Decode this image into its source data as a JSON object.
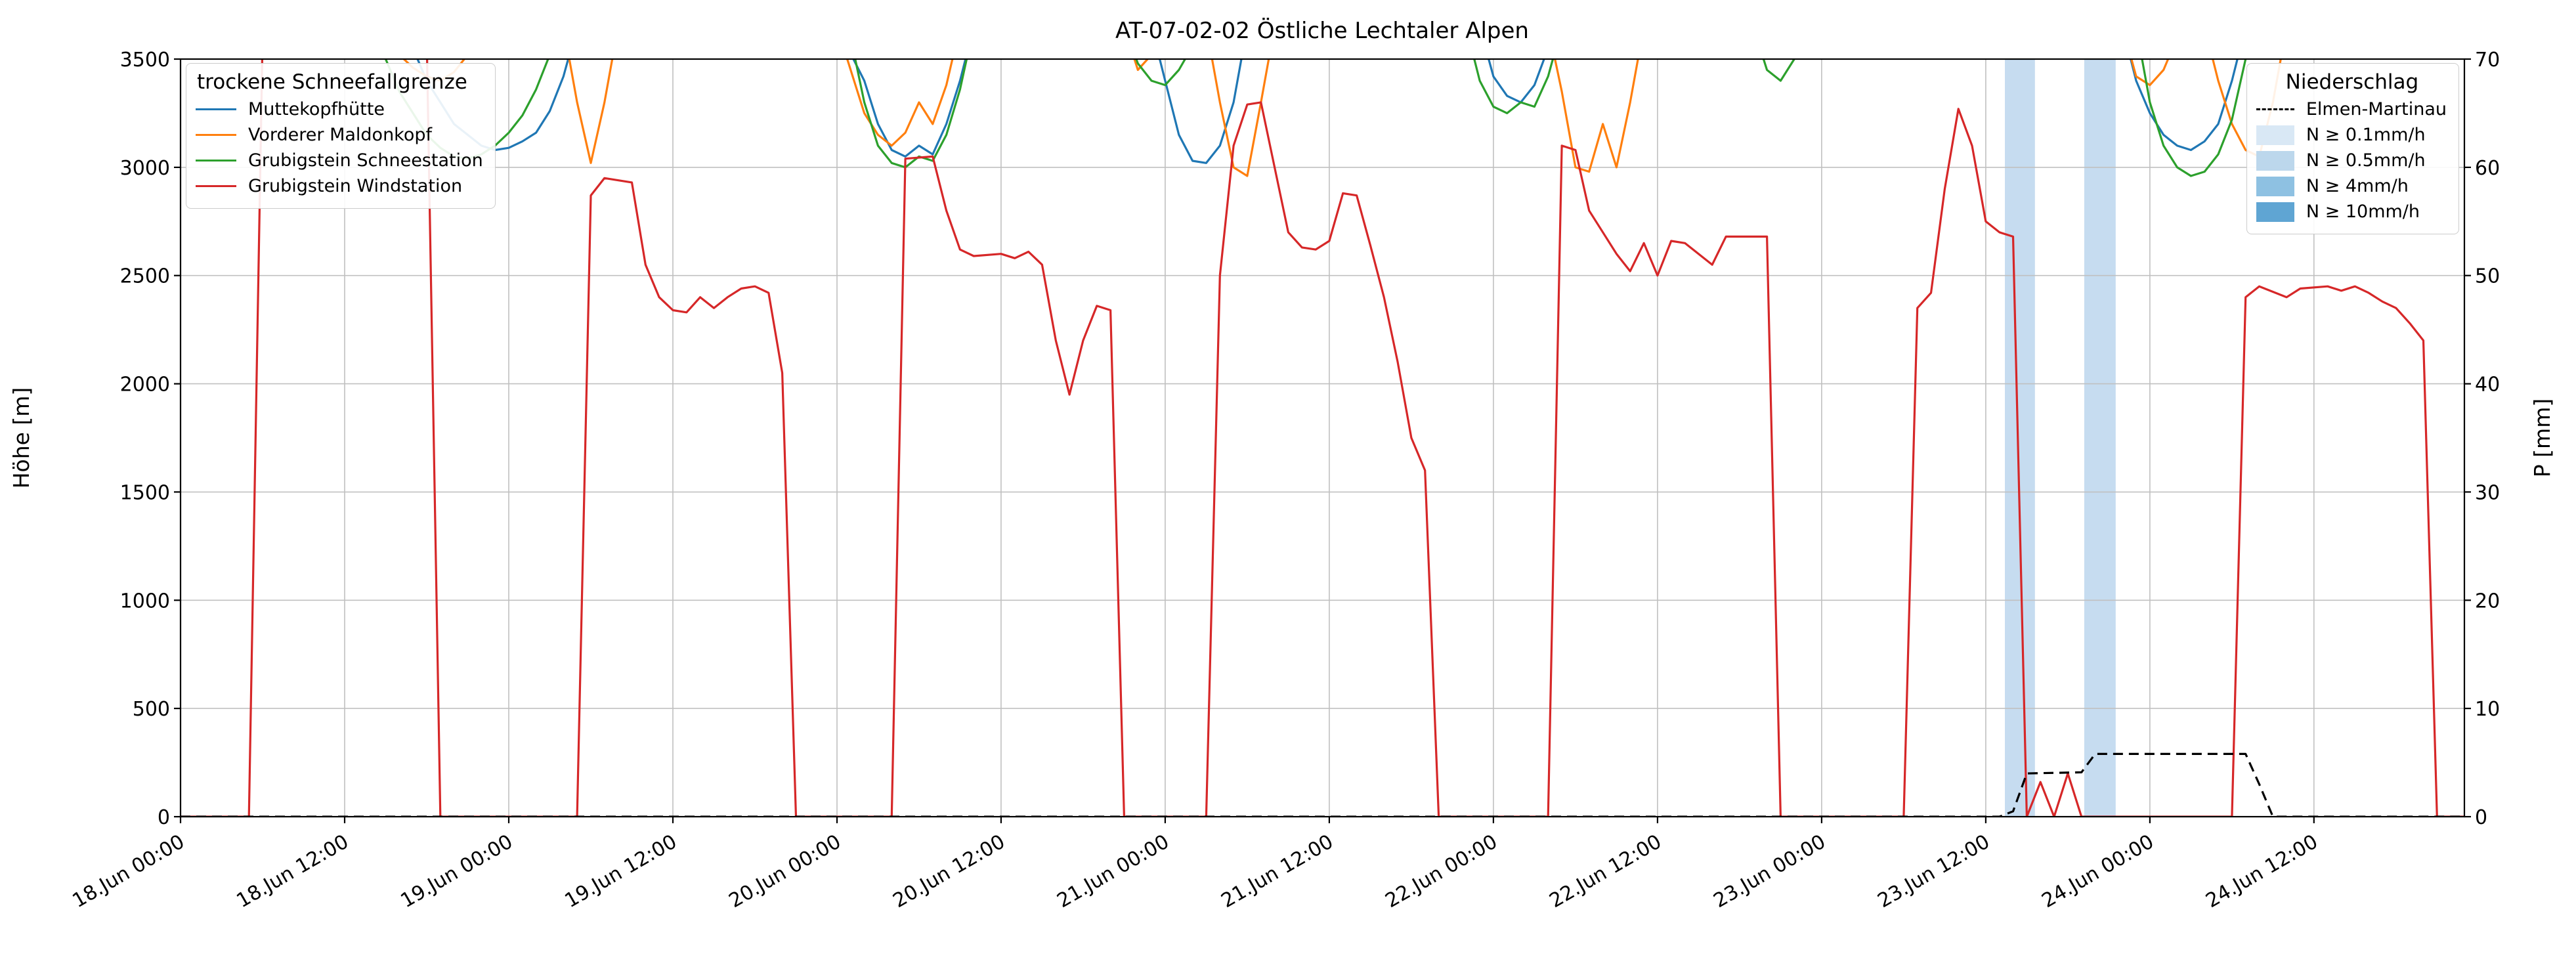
{
  "title": "AT-07-02-02 Östliche Lechtaler Alpen",
  "legend_snowline": {
    "title": "trockene Schneefallgrenze",
    "entries": [
      {
        "label": "Muttekopfhütte",
        "color": "#1f77b4"
      },
      {
        "label": "Vorderer Maldonkopf",
        "color": "#ff7f0e"
      },
      {
        "label": "Grubigstein Schneestation",
        "color": "#2ca02c"
      },
      {
        "label": "Grubigstein Windstation",
        "color": "#d62728"
      }
    ]
  },
  "legend_precip": {
    "title": "Niederschlag",
    "entries": [
      {
        "label": "Elmen-Martinau",
        "type": "dashed-line",
        "color": "#000000"
      },
      {
        "label": "N ≥ 0.1mm/h",
        "type": "patch",
        "color": "#d9e8f5"
      },
      {
        "label": "N ≥ 0.5mm/h",
        "type": "patch",
        "color": "#bcd7ec"
      },
      {
        "label": "N ≥ 4mm/h",
        "type": "patch",
        "color": "#8ec1e2"
      },
      {
        "label": "N ≥ 10mm/h",
        "type": "patch",
        "color": "#5fa5d3"
      }
    ]
  },
  "chart_data": {
    "type": "line",
    "title": "AT-07-02-02 Östliche Lechtaler Alpen",
    "grid": true,
    "x_axis": {
      "unit": "time",
      "range_hours": [
        0,
        167
      ],
      "tick_hours": [
        0,
        12,
        24,
        36,
        48,
        60,
        72,
        84,
        96,
        108,
        120,
        132,
        144,
        156
      ],
      "tick_labels": [
        "18.Jun 00:00",
        "18.Jun 12:00",
        "19.Jun 00:00",
        "19.Jun 12:00",
        "20.Jun 00:00",
        "20.Jun 12:00",
        "21.Jun 00:00",
        "21.Jun 12:00",
        "22.Jun 00:00",
        "22.Jun 12:00",
        "23.Jun 00:00",
        "23.Jun 12:00",
        "24.Jun 00:00",
        "24.Jun 12:00"
      ]
    },
    "y_left": {
      "label": "Höhe [m]",
      "min": 0,
      "max": 3500,
      "ticks": [
        0,
        500,
        1000,
        1500,
        2000,
        2500,
        3000,
        3500
      ]
    },
    "y_right": {
      "label": "P [mm]",
      "min": 0,
      "max": 70,
      "ticks": [
        0,
        10,
        20,
        30,
        40,
        50,
        60,
        70
      ]
    },
    "precip_bands": [
      {
        "start_hour": 133.4,
        "end_hour": 135.6,
        "intensity": "N ≥ 0.5mm/h",
        "color": "#c6dcf0"
      },
      {
        "start_hour": 139.2,
        "end_hour": 141.5,
        "intensity": "N ≥ 0.5mm/h",
        "color": "#c6dcf0"
      }
    ],
    "series": [
      {
        "name": "Muttekopfhütte",
        "color": "#1f77b4",
        "axis": "left",
        "style": "solid",
        "points": [
          [
            0,
            3650
          ],
          [
            16,
            3650
          ],
          [
            17,
            3550
          ],
          [
            18,
            3400
          ],
          [
            19,
            3300
          ],
          [
            20,
            3200
          ],
          [
            21,
            3150
          ],
          [
            22,
            3100
          ],
          [
            23,
            3080
          ],
          [
            24,
            3090
          ],
          [
            25,
            3120
          ],
          [
            26,
            3160
          ],
          [
            27,
            3260
          ],
          [
            28,
            3420
          ],
          [
            29,
            3650
          ],
          [
            48,
            3650
          ],
          [
            50,
            3400
          ],
          [
            51,
            3200
          ],
          [
            52,
            3080
          ],
          [
            53,
            3050
          ],
          [
            54,
            3100
          ],
          [
            55,
            3060
          ],
          [
            56,
            3200
          ],
          [
            57,
            3400
          ],
          [
            58,
            3650
          ],
          [
            71,
            3650
          ],
          [
            72,
            3400
          ],
          [
            73,
            3150
          ],
          [
            74,
            3030
          ],
          [
            75,
            3020
          ],
          [
            76,
            3100
          ],
          [
            77,
            3300
          ],
          [
            78,
            3650
          ],
          [
            95,
            3650
          ],
          [
            96,
            3420
          ],
          [
            97,
            3330
          ],
          [
            98,
            3300
          ],
          [
            99,
            3380
          ],
          [
            100,
            3550
          ],
          [
            101,
            3650
          ],
          [
            142,
            3650
          ],
          [
            143,
            3400
          ],
          [
            144,
            3250
          ],
          [
            145,
            3150
          ],
          [
            146,
            3100
          ],
          [
            147,
            3080
          ],
          [
            148,
            3120
          ],
          [
            149,
            3200
          ],
          [
            150,
            3400
          ],
          [
            151,
            3650
          ],
          [
            167,
            3650
          ]
        ]
      },
      {
        "name": "Vorderer Maldonkopf",
        "color": "#ff7f0e",
        "axis": "left",
        "style": "solid",
        "points": [
          [
            0,
            3650
          ],
          [
            15,
            3650
          ],
          [
            16,
            3520
          ],
          [
            17,
            3460
          ],
          [
            18,
            3420
          ],
          [
            19,
            3400
          ],
          [
            20,
            3440
          ],
          [
            21,
            3520
          ],
          [
            22,
            3650
          ],
          [
            28,
            3650
          ],
          [
            29,
            3300
          ],
          [
            30,
            3020
          ],
          [
            31,
            3300
          ],
          [
            32,
            3650
          ],
          [
            48,
            3650
          ],
          [
            49,
            3450
          ],
          [
            50,
            3250
          ],
          [
            51,
            3150
          ],
          [
            52,
            3100
          ],
          [
            53,
            3160
          ],
          [
            54,
            3300
          ],
          [
            55,
            3200
          ],
          [
            56,
            3380
          ],
          [
            57,
            3650
          ],
          [
            69,
            3650
          ],
          [
            70,
            3450
          ],
          [
            71,
            3520
          ],
          [
            72,
            3650
          ],
          [
            75,
            3650
          ],
          [
            76,
            3300
          ],
          [
            77,
            3000
          ],
          [
            78,
            2960
          ],
          [
            79,
            3300
          ],
          [
            80,
            3650
          ],
          [
            100,
            3650
          ],
          [
            101,
            3350
          ],
          [
            102,
            3000
          ],
          [
            103,
            2980
          ],
          [
            104,
            3200
          ],
          [
            105,
            3000
          ],
          [
            106,
            3300
          ],
          [
            107,
            3650
          ],
          [
            142,
            3650
          ],
          [
            143,
            3420
          ],
          [
            144,
            3380
          ],
          [
            145,
            3450
          ],
          [
            146,
            3600
          ],
          [
            148,
            3650
          ],
          [
            149,
            3400
          ],
          [
            150,
            3200
          ],
          [
            151,
            3080
          ],
          [
            152,
            3050
          ],
          [
            153,
            3300
          ],
          [
            154,
            3650
          ],
          [
            167,
            3650
          ]
        ]
      },
      {
        "name": "Grubigstein Schneestation",
        "color": "#2ca02c",
        "axis": "left",
        "style": "solid",
        "points": [
          [
            0,
            3650
          ],
          [
            14,
            3650
          ],
          [
            15,
            3500
          ],
          [
            16,
            3350
          ],
          [
            17,
            3250
          ],
          [
            18,
            3150
          ],
          [
            19,
            3090
          ],
          [
            20,
            3050
          ],
          [
            21,
            3040
          ],
          [
            22,
            3060
          ],
          [
            23,
            3100
          ],
          [
            24,
            3160
          ],
          [
            25,
            3240
          ],
          [
            26,
            3360
          ],
          [
            27,
            3520
          ],
          [
            28,
            3650
          ],
          [
            48,
            3650
          ],
          [
            49,
            3600
          ],
          [
            50,
            3300
          ],
          [
            51,
            3100
          ],
          [
            52,
            3020
          ],
          [
            53,
            3000
          ],
          [
            54,
            3050
          ],
          [
            55,
            3030
          ],
          [
            56,
            3150
          ],
          [
            57,
            3360
          ],
          [
            58,
            3650
          ],
          [
            69,
            3650
          ],
          [
            70,
            3480
          ],
          [
            71,
            3400
          ],
          [
            72,
            3380
          ],
          [
            73,
            3450
          ],
          [
            74,
            3560
          ],
          [
            75,
            3650
          ],
          [
            94,
            3650
          ],
          [
            95,
            3400
          ],
          [
            96,
            3280
          ],
          [
            97,
            3250
          ],
          [
            98,
            3300
          ],
          [
            99,
            3280
          ],
          [
            100,
            3420
          ],
          [
            101,
            3650
          ],
          [
            115,
            3650
          ],
          [
            116,
            3450
          ],
          [
            117,
            3400
          ],
          [
            118,
            3500
          ],
          [
            119,
            3650
          ],
          [
            143,
            3650
          ],
          [
            144,
            3300
          ],
          [
            145,
            3100
          ],
          [
            146,
            3000
          ],
          [
            147,
            2960
          ],
          [
            148,
            2980
          ],
          [
            149,
            3060
          ],
          [
            150,
            3220
          ],
          [
            151,
            3500
          ],
          [
            152,
            3650
          ],
          [
            167,
            3650
          ]
        ]
      },
      {
        "name": "Grubigstein Windstation",
        "color": "#d62728",
        "axis": "left",
        "style": "solid",
        "points": [
          [
            0,
            0
          ],
          [
            5,
            0
          ],
          [
            6,
            3600
          ],
          [
            18,
            3600
          ],
          [
            19,
            0
          ],
          [
            29,
            0
          ],
          [
            30,
            2870
          ],
          [
            31,
            2950
          ],
          [
            33,
            2930
          ],
          [
            34,
            2550
          ],
          [
            35,
            2400
          ],
          [
            36,
            2340
          ],
          [
            37,
            2330
          ],
          [
            38,
            2400
          ],
          [
            39,
            2350
          ],
          [
            40,
            2400
          ],
          [
            41,
            2440
          ],
          [
            42,
            2450
          ],
          [
            43,
            2420
          ],
          [
            44,
            2050
          ],
          [
            45,
            0
          ],
          [
            52,
            0
          ],
          [
            53,
            3040
          ],
          [
            55,
            3050
          ],
          [
            56,
            2800
          ],
          [
            57,
            2620
          ],
          [
            58,
            2590
          ],
          [
            60,
            2600
          ],
          [
            61,
            2580
          ],
          [
            62,
            2610
          ],
          [
            63,
            2550
          ],
          [
            64,
            2200
          ],
          [
            65,
            1950
          ],
          [
            66,
            2200
          ],
          [
            67,
            2360
          ],
          [
            68,
            2340
          ],
          [
            69,
            0
          ],
          [
            75,
            0
          ],
          [
            76,
            2500
          ],
          [
            77,
            3100
          ],
          [
            78,
            3290
          ],
          [
            79,
            3300
          ],
          [
            80,
            3000
          ],
          [
            81,
            2700
          ],
          [
            82,
            2630
          ],
          [
            83,
            2620
          ],
          [
            84,
            2660
          ],
          [
            85,
            2880
          ],
          [
            86,
            2870
          ],
          [
            87,
            2640
          ],
          [
            88,
            2400
          ],
          [
            89,
            2100
          ],
          [
            90,
            1750
          ],
          [
            91,
            1600
          ],
          [
            92,
            0
          ],
          [
            100,
            0
          ],
          [
            101,
            3100
          ],
          [
            102,
            3080
          ],
          [
            103,
            2800
          ],
          [
            104,
            2700
          ],
          [
            105,
            2600
          ],
          [
            106,
            2520
          ],
          [
            107,
            2650
          ],
          [
            108,
            2500
          ],
          [
            109,
            2660
          ],
          [
            110,
            2650
          ],
          [
            111,
            2600
          ],
          [
            112,
            2550
          ],
          [
            113,
            2680
          ],
          [
            116,
            2680
          ],
          [
            117,
            0
          ],
          [
            126,
            0
          ],
          [
            127,
            2350
          ],
          [
            128,
            2420
          ],
          [
            129,
            2900
          ],
          [
            130,
            3270
          ],
          [
            131,
            3100
          ],
          [
            132,
            2750
          ],
          [
            133,
            2700
          ],
          [
            134,
            2680
          ],
          [
            135,
            0
          ],
          [
            136,
            160
          ],
          [
            137,
            0
          ],
          [
            138,
            200
          ],
          [
            139,
            0
          ],
          [
            150,
            0
          ],
          [
            151,
            2400
          ],
          [
            152,
            2450
          ],
          [
            154,
            2400
          ],
          [
            155,
            2440
          ],
          [
            157,
            2450
          ],
          [
            158,
            2430
          ],
          [
            159,
            2450
          ],
          [
            160,
            2420
          ],
          [
            161,
            2380
          ],
          [
            162,
            2350
          ],
          [
            163,
            2280
          ],
          [
            164,
            2200
          ],
          [
            165,
            0
          ],
          [
            167,
            0
          ]
        ]
      },
      {
        "name": "Elmen-Martinau",
        "color": "#000000",
        "axis": "right",
        "style": "dashed",
        "points": [
          [
            0,
            0
          ],
          [
            133,
            0
          ],
          [
            134,
            0.5
          ],
          [
            135,
            4
          ],
          [
            139,
            4.1
          ],
          [
            140,
            5.8
          ],
          [
            151,
            5.8
          ],
          [
            152,
            3
          ],
          [
            153,
            0
          ],
          [
            167,
            0
          ]
        ]
      }
    ]
  }
}
